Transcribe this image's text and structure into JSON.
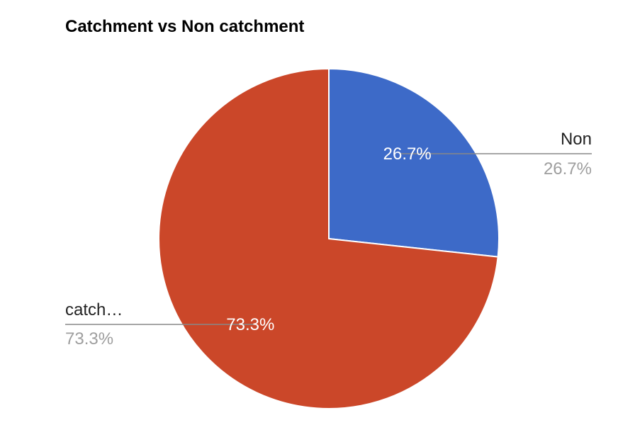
{
  "chart_data": {
    "type": "pie",
    "title": "Catchment vs Non catchment",
    "slices": [
      {
        "name": "Non",
        "value": 26.7,
        "slice_label": "26.7%",
        "legend_value": "26.7%",
        "color": "#3d6ac8"
      },
      {
        "name": "catch…",
        "value": 73.3,
        "slice_label": "73.3%",
        "legend_value": "73.3%",
        "color": "#cb4729"
      }
    ],
    "legend": "labeled leader lines"
  }
}
